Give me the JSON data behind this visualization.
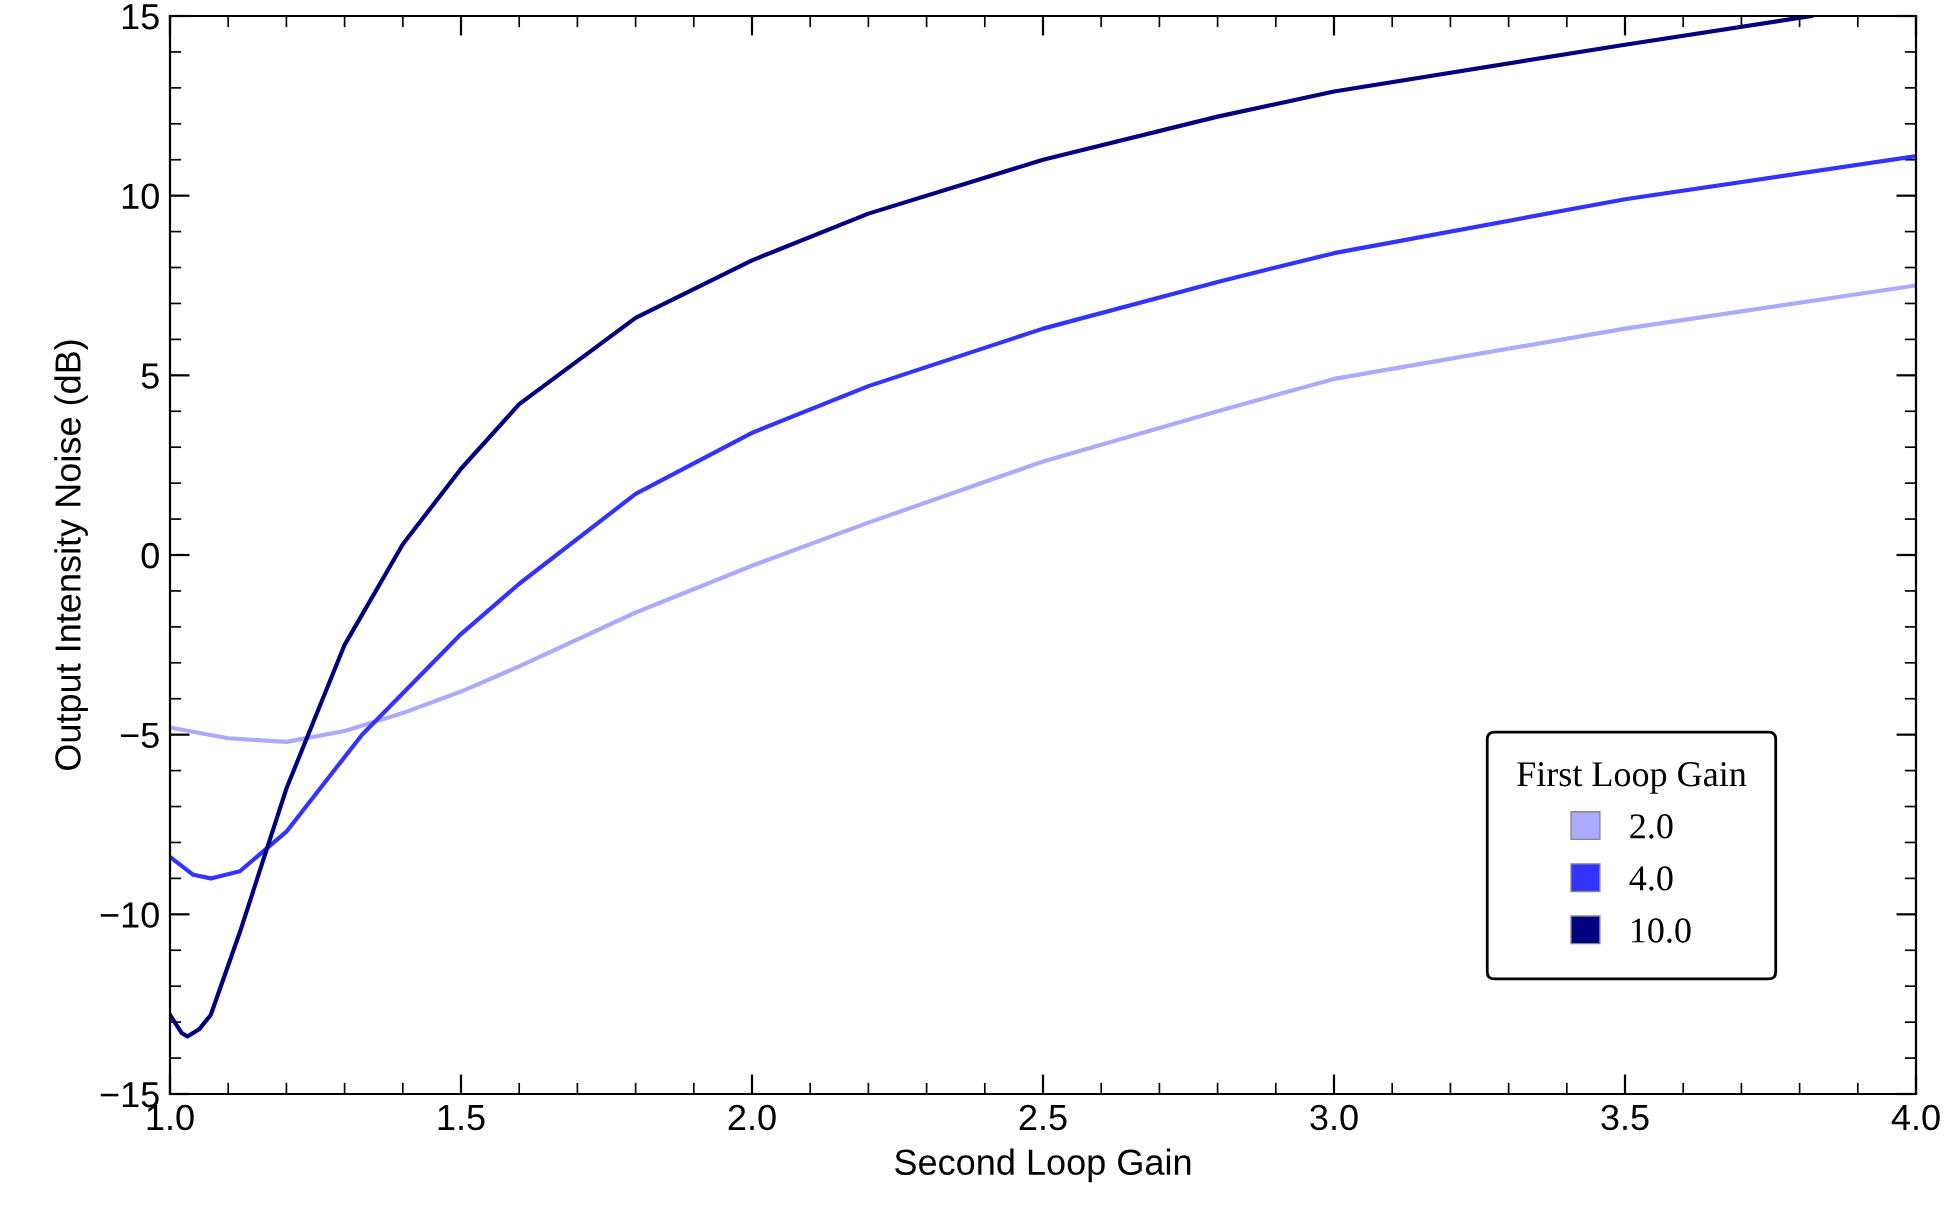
{
  "chart_data": {
    "type": "line",
    "xlabel": "Second Loop Gain",
    "ylabel": "Output Intensity Noise (dB)",
    "legend_title": "First Loop Gain",
    "xlim": [
      1.0,
      4.0
    ],
    "ylim": [
      -15,
      15
    ],
    "xticks": [
      {
        "value": 1.0,
        "label": "1.0"
      },
      {
        "value": 1.5,
        "label": "1.5"
      },
      {
        "value": 2.0,
        "label": "2.0"
      },
      {
        "value": 2.5,
        "label": "2.5"
      },
      {
        "value": 3.0,
        "label": "3.0"
      },
      {
        "value": 3.5,
        "label": "3.5"
      },
      {
        "value": 4.0,
        "label": "4.0"
      }
    ],
    "yticks": [
      {
        "value": -15,
        "label": "−15"
      },
      {
        "value": -10,
        "label": "−10"
      },
      {
        "value": -5,
        "label": "−5"
      },
      0,
      5,
      10,
      15
    ],
    "grid": false,
    "legend": "bottom right",
    "marker": "none",
    "line_style": "solid",
    "series": [
      {
        "name": "2.0",
        "color": "#aaaaff",
        "x": [
          1.0,
          1.1,
          1.2,
          1.3,
          1.4,
          1.5,
          1.6,
          1.8,
          2.0,
          2.2,
          2.5,
          2.8,
          3.0,
          3.5,
          4.0
        ],
        "values": [
          -4.8,
          -5.1,
          -5.2,
          -4.9,
          -4.4,
          -3.8,
          -3.1,
          -1.6,
          -0.3,
          0.9,
          2.6,
          4.0,
          4.9,
          6.3,
          7.5
        ]
      },
      {
        "name": "4.0",
        "color": "#3333ff",
        "x": [
          1.0,
          1.04,
          1.07,
          1.12,
          1.2,
          1.33,
          1.5,
          1.6,
          1.8,
          2.0,
          2.2,
          2.5,
          2.8,
          3.0,
          3.5,
          4.0
        ],
        "values": [
          -8.4,
          -8.9,
          -9.0,
          -8.8,
          -7.7,
          -5.0,
          -2.2,
          -0.8,
          1.7,
          3.4,
          4.7,
          6.3,
          7.6,
          8.4,
          9.9,
          11.1
        ]
      },
      {
        "name": "10.0",
        "color": "#000080",
        "x": [
          1.0,
          1.02,
          1.03,
          1.05,
          1.07,
          1.12,
          1.2,
          1.3,
          1.4,
          1.5,
          1.6,
          1.8,
          2.0,
          2.2,
          2.5,
          2.8,
          3.0,
          3.5,
          3.82
        ],
        "values": [
          -12.8,
          -13.3,
          -13.4,
          -13.2,
          -12.8,
          -10.5,
          -6.5,
          -2.5,
          0.3,
          2.4,
          4.2,
          6.6,
          8.2,
          9.5,
          11.0,
          12.2,
          12.9,
          14.2,
          15.0
        ]
      }
    ]
  }
}
